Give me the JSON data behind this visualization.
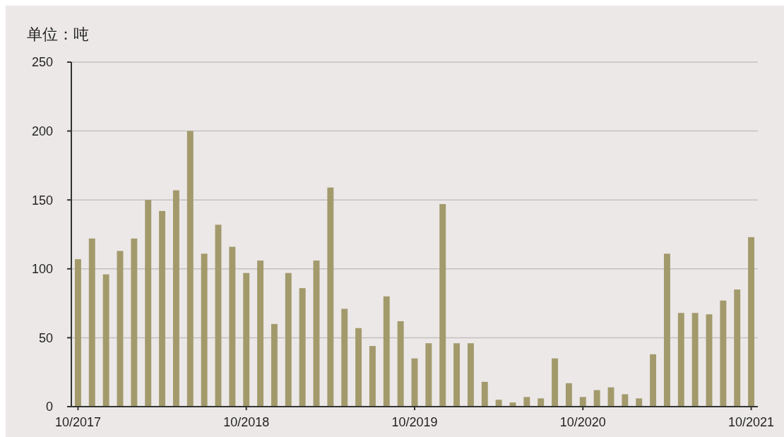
{
  "chart_data": {
    "type": "bar",
    "ylabel": "单位：吨",
    "categories": [
      "10/2017",
      null,
      null,
      null,
      null,
      null,
      null,
      null,
      null,
      null,
      null,
      null,
      "10/2018",
      null,
      null,
      null,
      null,
      null,
      null,
      null,
      null,
      null,
      null,
      null,
      "10/2019",
      null,
      null,
      null,
      null,
      null,
      null,
      null,
      null,
      null,
      null,
      null,
      "10/2020",
      null,
      null,
      null,
      null,
      null,
      null,
      null,
      null,
      null,
      null,
      null,
      "10/2021"
    ],
    "values": [
      107,
      122,
      96,
      113,
      122,
      150,
      142,
      157,
      200,
      111,
      132,
      116,
      97,
      106,
      60,
      97,
      86,
      106,
      159,
      71,
      57,
      44,
      80,
      62,
      35,
      46,
      147,
      46,
      46,
      18,
      5,
      3,
      7,
      6,
      35,
      17,
      7,
      12,
      14,
      9,
      6,
      38,
      111,
      68,
      68,
      67,
      77,
      85,
      123
    ],
    "color": "#a39a6c",
    "ylim": [
      0,
      250
    ],
    "yticks": [
      0,
      50,
      100,
      150,
      200,
      250
    ],
    "grid": "y"
  }
}
